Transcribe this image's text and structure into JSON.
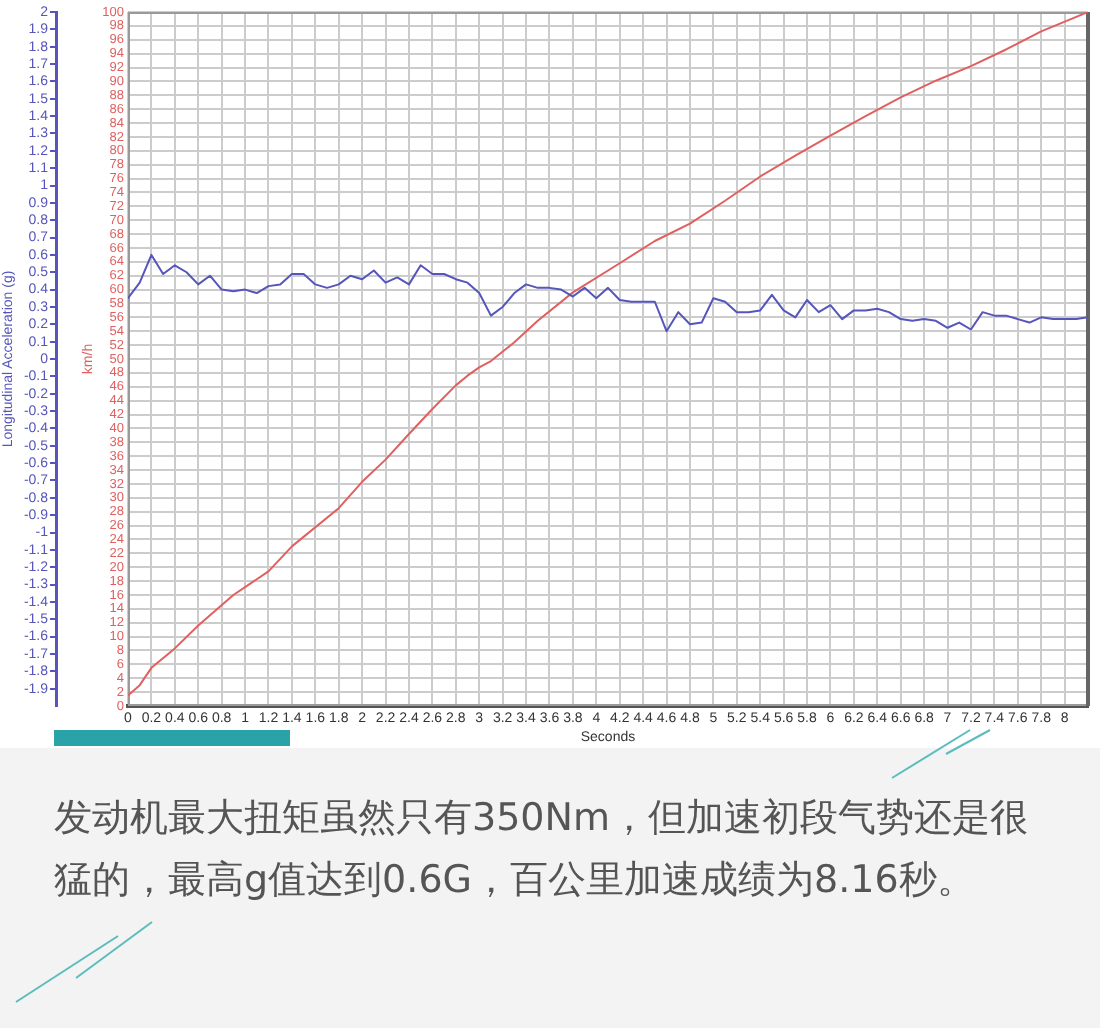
{
  "chart_data": {
    "type": "line",
    "xlabel": "Seconds",
    "ylabel": "Longitudinal Acceleration (g)",
    "y2label": "km/h",
    "series": [
      {
        "color": "#5555bb",
        "x": [
          0,
          0.1,
          0.2,
          0.3,
          0.4,
          0.5,
          0.6,
          0.7,
          0.8,
          0.9,
          1.0,
          1.1,
          1.2,
          1.3,
          1.4,
          1.5,
          1.6,
          1.7,
          1.8,
          1.9,
          2.0,
          2.1,
          2.2,
          2.3,
          2.4,
          2.5,
          2.6,
          2.7,
          2.8,
          2.9,
          3.0,
          3.1,
          3.2,
          3.3,
          3.4,
          3.5,
          3.6,
          3.7,
          3.8,
          3.9,
          4.0,
          4.1,
          4.2,
          4.3,
          4.4,
          4.5,
          4.6,
          4.7,
          4.8,
          4.9,
          5.0,
          5.1,
          5.2,
          5.3,
          5.4,
          5.5,
          5.6,
          5.7,
          5.8,
          5.9,
          6.0,
          6.1,
          6.2,
          6.3,
          6.4,
          6.5,
          6.6,
          6.7,
          6.8,
          6.9,
          7.0,
          7.1,
          7.2,
          7.3,
          7.4,
          7.5,
          7.6,
          7.7,
          7.8,
          7.9,
          8.0,
          8.1,
          8.2
        ],
        "values": [
          0.35,
          0.44,
          0.6,
          0.49,
          0.54,
          0.5,
          0.43,
          0.48,
          0.4,
          0.39,
          0.4,
          0.38,
          0.42,
          0.43,
          0.49,
          0.49,
          0.43,
          0.41,
          0.43,
          0.48,
          0.46,
          0.51,
          0.44,
          0.47,
          0.43,
          0.54,
          0.49,
          0.49,
          0.46,
          0.44,
          0.38,
          0.25,
          0.3,
          0.38,
          0.43,
          0.41,
          0.41,
          0.4,
          0.36,
          0.41,
          0.35,
          0.41,
          0.34,
          0.33,
          0.33,
          0.33,
          0.16,
          0.27,
          0.2,
          0.21,
          0.35,
          0.33,
          0.27,
          0.27,
          0.28,
          0.37,
          0.28,
          0.24,
          0.34,
          0.27,
          0.31,
          0.23,
          0.28,
          0.28,
          0.29,
          0.27,
          0.23,
          0.22,
          0.23,
          0.22,
          0.18,
          0.21,
          0.17,
          0.27,
          0.25,
          0.25,
          0.23,
          0.21,
          0.24,
          0.23,
          0.23,
          0.23,
          0.24
        ]
      },
      {
        "color": "#e06060",
        "axis": "y2",
        "x": [
          0,
          0.1,
          0.2,
          0.4,
          0.6,
          0.9,
          1.2,
          1.4,
          1.8,
          2.0,
          2.2,
          2.4,
          2.6,
          2.8,
          2.9,
          3.0,
          3.1,
          3.3,
          3.5,
          3.8,
          4.2,
          4.5,
          4.8,
          5.1,
          5.4,
          5.7,
          6.0,
          6.3,
          6.6,
          6.9,
          7.2,
          7.5,
          7.8,
          8.1,
          8.2
        ],
        "values": [
          1.5,
          3,
          5.5,
          8.3,
          11.6,
          16,
          19.4,
          23,
          28.5,
          32.3,
          35.5,
          39.2,
          42.8,
          46.2,
          47.6,
          48.8,
          49.7,
          52.4,
          55.5,
          59.6,
          63.8,
          67,
          69.5,
          72.8,
          76.3,
          79.3,
          82.2,
          85,
          87.7,
          90.1,
          92.2,
          94.6,
          97.2,
          99.3,
          100
        ]
      }
    ],
    "xlim": [
      0,
      8.2
    ],
    "xticks": [
      0,
      0.2,
      0.4,
      0.6,
      0.8,
      1,
      1.2,
      1.4,
      1.6,
      1.8,
      2,
      2.2,
      2.4,
      2.6,
      2.8,
      3,
      3.2,
      3.4,
      3.6,
      3.8,
      4,
      4.2,
      4.4,
      4.6,
      4.8,
      5,
      5.2,
      5.4,
      5.6,
      5.8,
      6,
      6.2,
      6.4,
      6.6,
      6.8,
      7,
      7.2,
      7.4,
      7.6,
      7.8,
      8
    ],
    "ylim": [
      -2,
      2
    ],
    "yticks": [
      -1.9,
      -1.8,
      -1.7,
      -1.6,
      -1.5,
      -1.4,
      -1.3,
      -1.2,
      -1.1,
      -1,
      -0.9,
      -0.8,
      -0.7,
      -0.6,
      -0.5,
      -0.4,
      -0.3,
      -0.2,
      -0.1,
      0,
      0.1,
      0.2,
      0.3,
      0.4,
      0.5,
      0.6,
      0.7,
      0.8,
      0.9,
      1,
      1.1,
      1.2,
      1.3,
      1.4,
      1.5,
      1.6,
      1.7,
      1.8,
      1.9,
      2
    ],
    "y2lim": [
      0,
      100
    ],
    "y2ticks": [
      0,
      2,
      4,
      6,
      8,
      10,
      12,
      14,
      16,
      18,
      20,
      22,
      24,
      26,
      28,
      30,
      32,
      34,
      36,
      38,
      40,
      42,
      44,
      46,
      48,
      50,
      52,
      54,
      56,
      58,
      60,
      62,
      64,
      66,
      68,
      70,
      72,
      74,
      76,
      78,
      80,
      82,
      84,
      86,
      88,
      90,
      92,
      94,
      96,
      98,
      100
    ],
    "grid": true,
    "annotations": [
      "发动机最大扭矩虽然只有350Nm，但加速初段气势还是很猛的，最高g值达到0.6G，百公里加速成绩为8.16秒。"
    ]
  }
}
